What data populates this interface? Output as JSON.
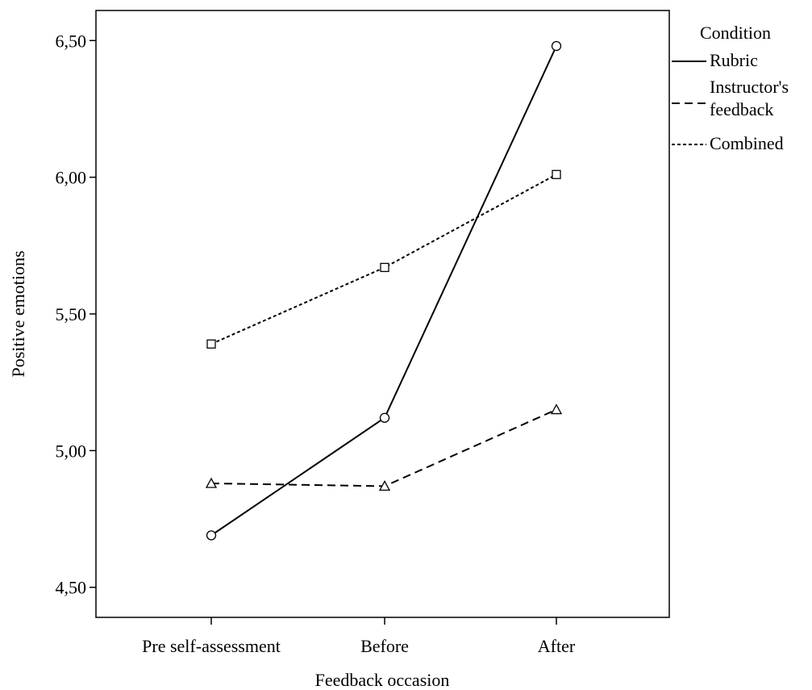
{
  "chart_data": {
    "type": "line",
    "title": "",
    "xlabel": "Feedback occasion",
    "ylabel": "Positive emotions",
    "categories": [
      "Pre self-assessment",
      "Before",
      "After"
    ],
    "ylim": [
      4.39,
      6.61
    ],
    "yticks": [
      4.5,
      5.0,
      5.5,
      6.0,
      6.5
    ],
    "ytick_labels": [
      "4,50",
      "5,00",
      "5,50",
      "6,00",
      "6,50"
    ],
    "grid": false,
    "legend": {
      "title": "Condition",
      "position": "right",
      "entries": [
        {
          "lines": [
            "Rubric"
          ]
        },
        {
          "lines": [
            "Instructor's",
            "feedback"
          ]
        },
        {
          "lines": [
            "Combined"
          ]
        }
      ]
    },
    "series": [
      {
        "name": "Rubric",
        "values": [
          4.69,
          5.12,
          6.48
        ],
        "marker": "circle",
        "dash": "solid",
        "color": "#000000"
      },
      {
        "name": "Instructor's feedback",
        "values": [
          4.88,
          4.87,
          5.15
        ],
        "marker": "triangle",
        "dash": "dashed",
        "color": "#000000"
      },
      {
        "name": "Combined",
        "values": [
          5.39,
          5.67,
          6.01
        ],
        "marker": "square",
        "dash": "dotted",
        "color": "#000000"
      }
    ]
  }
}
